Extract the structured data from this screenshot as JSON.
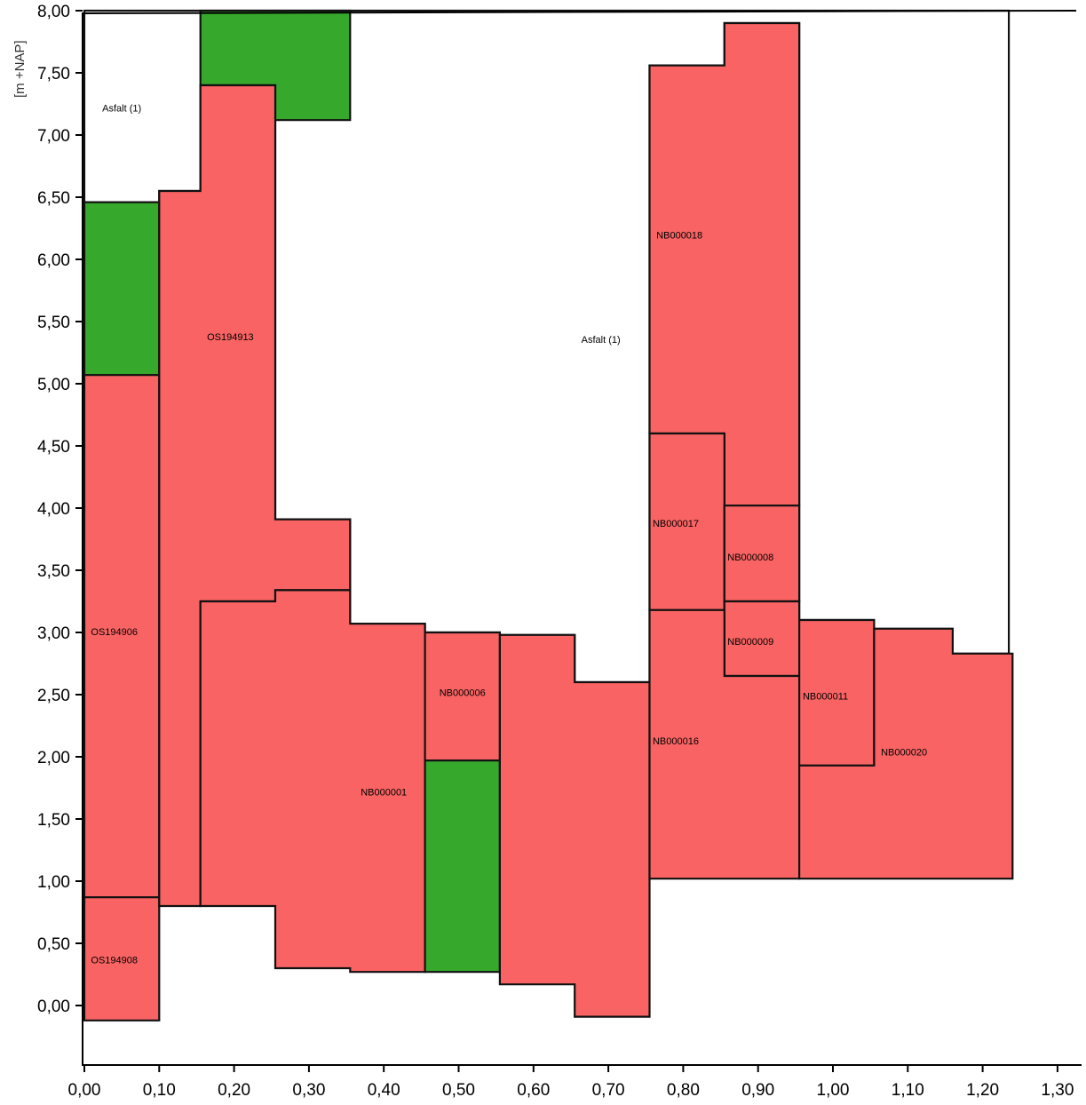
{
  "colors": {
    "red": "#f96363",
    "green": "#36a82c",
    "white": "#ffffff",
    "outline": "#111111",
    "axis": "#000000"
  },
  "chart_data": {
    "type": "area",
    "title": "",
    "xlabel": "",
    "ylabel": "[m +NAP]",
    "xlim": [
      0,
      1.32
    ],
    "ylim": [
      -0.5,
      8.0
    ],
    "grid": false,
    "xticks": [
      0.0,
      0.1,
      0.2,
      0.3,
      0.4,
      0.5,
      0.6,
      0.7,
      0.8,
      0.9,
      1.0,
      1.1,
      1.2,
      1.3
    ],
    "xtick_labels": [
      "0,00",
      "0,10",
      "0,20",
      "0,30",
      "0,40",
      "0,50",
      "0,60",
      "0,70",
      "0,80",
      "0,90",
      "1,00",
      "1,10",
      "1,20",
      "1,30"
    ],
    "yticks": [
      0.0,
      0.5,
      1.0,
      1.5,
      2.0,
      2.5,
      3.0,
      3.5,
      4.0,
      4.5,
      5.0,
      5.5,
      6.0,
      6.5,
      7.0,
      7.5,
      8.0
    ],
    "ytick_labels": [
      "0,00",
      "0,50",
      "1,00",
      "1,50",
      "2,00",
      "2,50",
      "3,00",
      "3,50",
      "4,00",
      "4,50",
      "5,00",
      "5,50",
      "6,00",
      "6,50",
      "7,00",
      "7,50",
      "8,00"
    ],
    "regions": [
      {
        "fill": "white",
        "label": "Asfalt (1)",
        "label_at": [
          0.05,
          7.21
        ],
        "points": [
          [
            0,
            8.0
          ],
          [
            1.235,
            8.0
          ],
          [
            1.235,
            2.83
          ],
          [
            1.16,
            2.83
          ],
          [
            1.16,
            3.03
          ],
          [
            1.055,
            3.03
          ],
          [
            1.055,
            3.1
          ],
          [
            0.955,
            3.1
          ],
          [
            0.955,
            7.9
          ],
          [
            0.855,
            7.9
          ],
          [
            0.855,
            7.56
          ],
          [
            0.755,
            7.56
          ],
          [
            0.755,
            2.6
          ],
          [
            0.655,
            2.6
          ],
          [
            0.655,
            2.98
          ],
          [
            0.555,
            2.98
          ],
          [
            0.555,
            3.0
          ],
          [
            0.455,
            3.0
          ],
          [
            0.455,
            3.07
          ],
          [
            0.355,
            3.07
          ],
          [
            0.355,
            3.91
          ],
          [
            0.255,
            3.91
          ],
          [
            0.255,
            7.4
          ],
          [
            0.155,
            7.4
          ],
          [
            0.155,
            6.55
          ],
          [
            0.1,
            6.55
          ],
          [
            0.1,
            6.46
          ],
          [
            0,
            6.46
          ]
        ]
      },
      {
        "fill": "green",
        "points": [
          [
            0.155,
            8.0
          ],
          [
            0.355,
            8.0
          ],
          [
            0.355,
            7.12
          ],
          [
            0.255,
            7.12
          ],
          [
            0.255,
            7.4
          ],
          [
            0.155,
            7.4
          ]
        ]
      },
      {
        "fill": "green",
        "points": [
          [
            0,
            6.46
          ],
          [
            0.1,
            6.46
          ],
          [
            0.1,
            5.07
          ],
          [
            0,
            5.07
          ]
        ]
      },
      {
        "fill": "red",
        "label": "OS194906",
        "label_at": [
          0.04,
          3.0
        ],
        "points": [
          [
            0,
            5.07
          ],
          [
            0.1,
            5.07
          ],
          [
            0.1,
            0.87
          ],
          [
            0,
            0.87
          ]
        ]
      },
      {
        "fill": "red",
        "label": "OS194908",
        "label_at": [
          0.04,
          0.36
        ],
        "points": [
          [
            0,
            0.87
          ],
          [
            0.1,
            0.87
          ],
          [
            0.1,
            -0.12
          ],
          [
            0,
            -0.12
          ]
        ]
      },
      {
        "fill": "red",
        "label": "OS194913",
        "label_at": [
          0.195,
          5.37
        ],
        "points": [
          [
            0.1,
            6.55
          ],
          [
            0.155,
            6.55
          ],
          [
            0.155,
            7.4
          ],
          [
            0.255,
            7.4
          ],
          [
            0.255,
            3.91
          ],
          [
            0.355,
            3.91
          ],
          [
            0.355,
            3.34
          ],
          [
            0.255,
            3.34
          ],
          [
            0.255,
            3.25
          ],
          [
            0.155,
            3.25
          ],
          [
            0.155,
            0.8
          ],
          [
            0.1,
            0.8
          ]
        ]
      },
      {
        "fill": "red",
        "label": "NB000001",
        "label_at": [
          0.4,
          1.71
        ],
        "points": [
          [
            0.155,
            3.25
          ],
          [
            0.255,
            3.25
          ],
          [
            0.255,
            3.34
          ],
          [
            0.355,
            3.34
          ],
          [
            0.355,
            3.07
          ],
          [
            0.455,
            3.07
          ],
          [
            0.455,
            0.27
          ],
          [
            0.355,
            0.27
          ],
          [
            0.355,
            0.3
          ],
          [
            0.255,
            0.3
          ],
          [
            0.255,
            0.4
          ],
          [
            0.255,
            0.8
          ],
          [
            0.155,
            0.8
          ]
        ]
      },
      {
        "fill": "red",
        "label": "NB000006",
        "label_at": [
          0.505,
          2.51
        ],
        "points": [
          [
            0.455,
            3.0
          ],
          [
            0.555,
            3.0
          ],
          [
            0.555,
            1.97
          ],
          [
            0.455,
            1.97
          ]
        ]
      },
      {
        "fill": "green",
        "points": [
          [
            0.455,
            1.97
          ],
          [
            0.555,
            1.97
          ],
          [
            0.555,
            0.27
          ],
          [
            0.455,
            0.27
          ]
        ]
      },
      {
        "fill": "red",
        "points": [
          [
            0.555,
            2.98
          ],
          [
            0.655,
            2.98
          ],
          [
            0.655,
            2.6
          ],
          [
            0.755,
            2.6
          ],
          [
            0.755,
            -0.09
          ],
          [
            0.655,
            -0.09
          ],
          [
            0.655,
            0.17
          ],
          [
            0.555,
            0.17
          ]
        ]
      },
      {
        "fill": "red",
        "label": "NB000018",
        "label_at": [
          0.795,
          6.19
        ],
        "points": [
          [
            0.755,
            7.56
          ],
          [
            0.855,
            7.56
          ],
          [
            0.855,
            7.9
          ],
          [
            0.955,
            7.9
          ],
          [
            0.955,
            4.02
          ],
          [
            0.855,
            4.02
          ],
          [
            0.855,
            4.6
          ],
          [
            0.755,
            4.6
          ]
        ]
      },
      {
        "fill": "red",
        "label": "NB000017",
        "label_at": [
          0.79,
          3.87
        ],
        "points": [
          [
            0.755,
            4.6
          ],
          [
            0.855,
            4.6
          ],
          [
            0.855,
            3.18
          ],
          [
            0.755,
            3.18
          ]
        ]
      },
      {
        "fill": "red",
        "label": "NB000008",
        "label_at": [
          0.89,
          3.6
        ],
        "points": [
          [
            0.855,
            4.02
          ],
          [
            0.955,
            4.02
          ],
          [
            0.955,
            3.25
          ],
          [
            0.855,
            3.25
          ]
        ]
      },
      {
        "fill": "red",
        "label": "NB000009",
        "label_at": [
          0.89,
          2.92
        ],
        "points": [
          [
            0.855,
            3.25
          ],
          [
            0.955,
            3.25
          ],
          [
            0.955,
            2.65
          ],
          [
            0.855,
            2.65
          ]
        ]
      },
      {
        "fill": "red",
        "label": "NB000016",
        "label_at": [
          0.79,
          2.12
        ],
        "points": [
          [
            0.755,
            3.18
          ],
          [
            0.855,
            3.18
          ],
          [
            0.855,
            2.65
          ],
          [
            0.955,
            2.65
          ],
          [
            0.955,
            1.02
          ],
          [
            0.755,
            1.02
          ]
        ]
      },
      {
        "fill": "red",
        "label": "NB000011",
        "label_at": [
          0.99,
          2.48
        ],
        "points": [
          [
            0.955,
            3.1
          ],
          [
            1.055,
            3.1
          ],
          [
            1.055,
            1.93
          ],
          [
            0.955,
            1.93
          ]
        ]
      },
      {
        "fill": "red",
        "label": "NB000020",
        "label_at": [
          1.095,
          2.03
        ],
        "points": [
          [
            0.955,
            1.93
          ],
          [
            1.055,
            1.93
          ],
          [
            1.055,
            3.03
          ],
          [
            1.16,
            3.03
          ],
          [
            1.16,
            2.83
          ],
          [
            1.24,
            2.83
          ],
          [
            1.24,
            1.02
          ],
          [
            0.955,
            1.02
          ]
        ]
      }
    ],
    "free_labels": [
      {
        "label": "Asfalt (1)",
        "at": [
          0.69,
          5.35
        ]
      }
    ]
  }
}
